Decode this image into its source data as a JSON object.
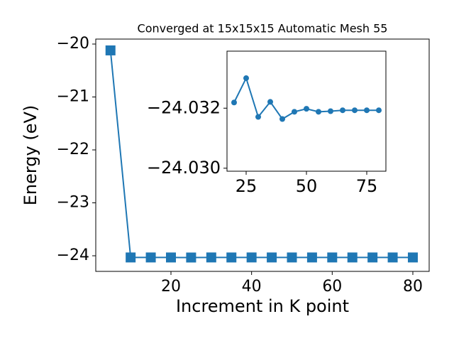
{
  "chart_data": [
    {
      "type": "line",
      "title": "Converged at 15x15x15 Automatic Mesh 55",
      "x_label": "Increment in K point",
      "y_label": "Energy (eV)",
      "marker": "square",
      "color": "#1f77b4",
      "x": [
        5,
        10,
        15,
        20,
        25,
        30,
        35,
        40,
        45,
        50,
        55,
        60,
        65,
        70,
        75,
        80
      ],
      "values": [
        -20.12,
        -24.0319,
        -24.0319,
        -24.03219,
        -24.033,
        -24.03171,
        -24.03221,
        -24.03164,
        -24.03188,
        -24.03198,
        -24.03188,
        -24.0319,
        -24.03193,
        -24.03193,
        -24.03193,
        -24.03193
      ],
      "xlim": [
        1.35,
        84.05
      ],
      "xticks": [
        20,
        40,
        60,
        80
      ],
      "ylim": [
        -24.295,
        -19.906
      ],
      "yticks": [
        {
          "value": -24,
          "label": "−24"
        },
        {
          "value": -23,
          "label": "−23"
        },
        {
          "value": -22,
          "label": "−22"
        },
        {
          "value": -21,
          "label": "−21"
        },
        {
          "value": -20,
          "label": "−20"
        }
      ]
    },
    {
      "type": "line",
      "marker": "circle",
      "color": "#1f77b4",
      "x": [
        20,
        25,
        30,
        35,
        40,
        45,
        50,
        55,
        60,
        65,
        70,
        75,
        80
      ],
      "values": [
        -24.03219,
        -24.033,
        -24.03171,
        -24.03221,
        -24.03164,
        -24.03188,
        -24.03198,
        -24.03188,
        -24.0319,
        -24.03193,
        -24.03193,
        -24.03193,
        -24.03193
      ],
      "xlim": [
        17.06,
        82.94
      ],
      "xticks": [
        25,
        50,
        75
      ],
      "ylim": [
        -24.0299,
        -24.0339
      ],
      "yticks": [
        {
          "value": -24.032,
          "label": "−24.032"
        },
        {
          "value": -24.03,
          "label": "−24.030"
        }
      ]
    }
  ]
}
